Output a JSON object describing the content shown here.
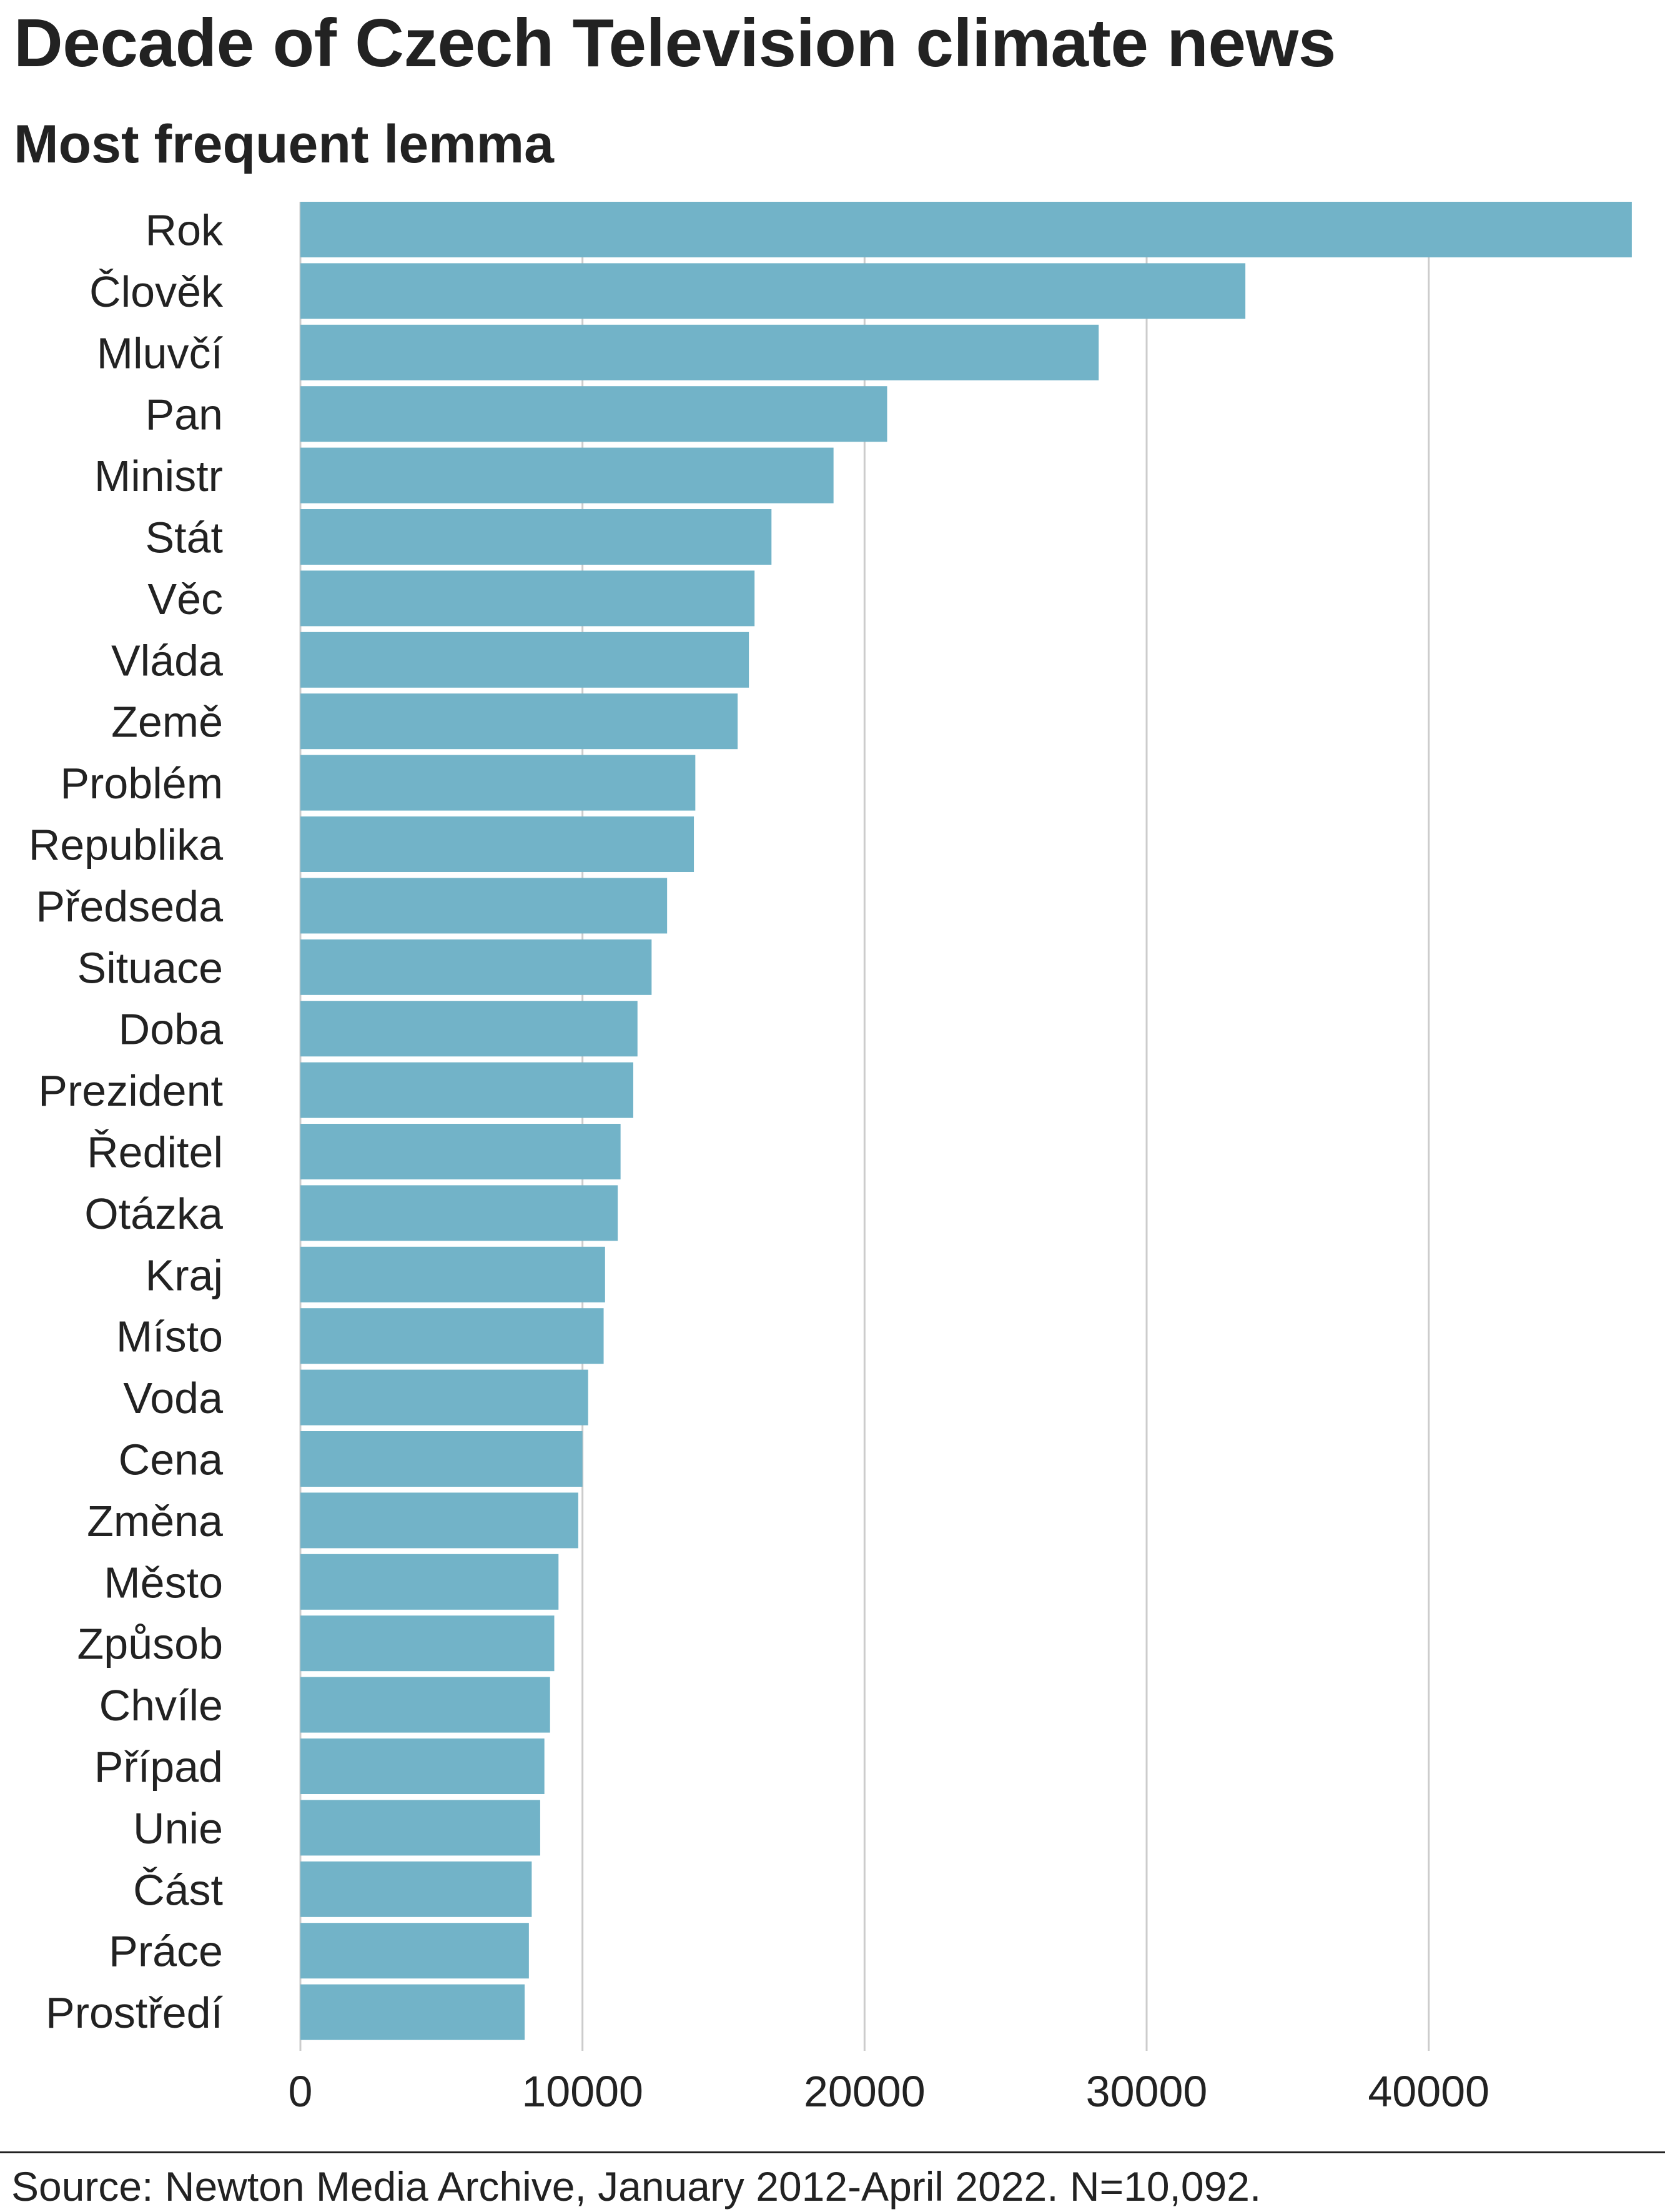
{
  "chart_data": {
    "type": "bar",
    "orientation": "horizontal",
    "title": "Decade of Czech Television climate news",
    "subtitle": "Most frequent lemma",
    "source": "Source: Newton Media Archive, January 2012-April 2022. N=10,092.",
    "categories": [
      "Rok",
      "Člověk",
      "Mluvčí",
      "Pan",
      "Ministr",
      "Stát",
      "Věc",
      "Vláda",
      "Země",
      "Problém",
      "Republika",
      "Předseda",
      "Situace",
      "Doba",
      "Prezident",
      "Ředitel",
      "Otázka",
      "Kraj",
      "Místo",
      "Voda",
      "Cena",
      "Změna",
      "Město",
      "Způsob",
      "Chvíle",
      "Případ",
      "Unie",
      "Část",
      "Práce",
      "Prostředí"
    ],
    "values": [
      47200,
      33500,
      28300,
      20800,
      18900,
      16700,
      16100,
      15900,
      15500,
      14000,
      13950,
      13000,
      12450,
      11950,
      11800,
      11350,
      11250,
      10800,
      10750,
      10200,
      10000,
      9850,
      9150,
      9000,
      8850,
      8650,
      8500,
      8200,
      8100,
      7950
    ],
    "xlim": [
      0,
      48000
    ],
    "xticks": [
      0,
      10000,
      20000,
      30000,
      40000
    ],
    "grid": "vertical",
    "bar_color": "#72b3c8",
    "grid_color": "#cccccc"
  }
}
